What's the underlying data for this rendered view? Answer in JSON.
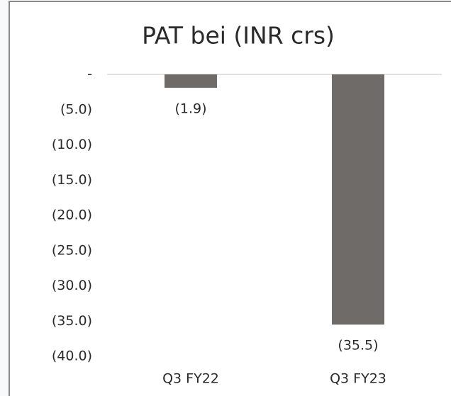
{
  "chart_data": {
    "type": "bar",
    "title": "PAT bei (INR crs)",
    "categories": [
      "Q3 FY22",
      "Q3 FY23"
    ],
    "values": [
      -1.9,
      -35.5
    ],
    "value_labels": [
      "(1.9)",
      "(35.5)"
    ],
    "color": "#6f6b69",
    "ylim": [
      -40,
      0
    ],
    "yticks": [
      {
        "value": 0,
        "label": "-"
      },
      {
        "value": -5,
        "label": "(5.0)"
      },
      {
        "value": -10,
        "label": "(10.0)"
      },
      {
        "value": -15,
        "label": "(15.0)"
      },
      {
        "value": -20,
        "label": "(20.0)"
      },
      {
        "value": -25,
        "label": "(25.0)"
      },
      {
        "value": -30,
        "label": "(30.0)"
      },
      {
        "value": -35,
        "label": "(35.0)"
      },
      {
        "value": -40,
        "label": "(40.0)"
      }
    ],
    "grid": false
  }
}
